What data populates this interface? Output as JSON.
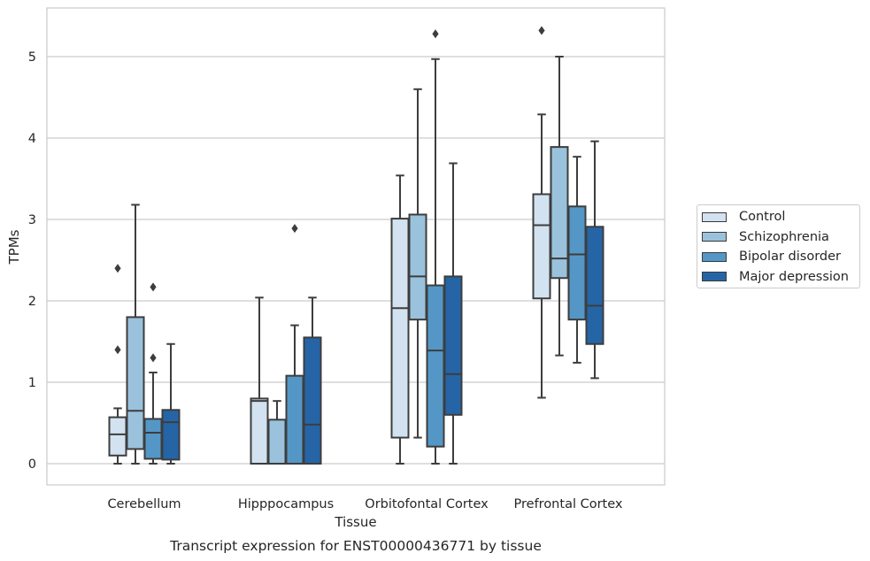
{
  "chart_data": {
    "type": "box",
    "caption": "Transcript expression for ENST00000436771 by tissue",
    "xlabel": "Tissue",
    "ylabel": "TPMs",
    "ylim": [
      -0.25,
      5.6
    ],
    "yticks": [
      0,
      1,
      2,
      3,
      4,
      5
    ],
    "grid": "horizontal",
    "legend_position": "right",
    "categories": [
      "Cerebellum",
      "Hipppocampus",
      "Orbitofontal Cortex",
      "Prefrontal Cortex"
    ],
    "series": [
      {
        "name": "Control",
        "color": "#d2e2f1",
        "boxes": [
          {
            "whisker_low": 0.0,
            "q1": 0.1,
            "median": 0.36,
            "q3": 0.57,
            "whisker_high": 0.68,
            "outliers": [
              1.4,
              2.4
            ]
          },
          {
            "whisker_low": 0.0,
            "q1": 0.0,
            "median": 0.77,
            "q3": 0.8,
            "whisker_high": 2.04,
            "outliers": []
          },
          {
            "whisker_low": 0.0,
            "q1": 0.32,
            "median": 1.91,
            "q3": 3.01,
            "whisker_high": 3.54,
            "outliers": []
          },
          {
            "whisker_low": 0.81,
            "q1": 2.03,
            "median": 2.93,
            "q3": 3.31,
            "whisker_high": 4.29,
            "outliers": [
              5.32
            ]
          }
        ]
      },
      {
        "name": "Schizophrenia",
        "color": "#9ac2dc",
        "boxes": [
          {
            "whisker_low": 0.0,
            "q1": 0.18,
            "median": 0.65,
            "q3": 1.8,
            "whisker_high": 3.18,
            "outliers": []
          },
          {
            "whisker_low": 0.0,
            "q1": 0.0,
            "median": 0.0,
            "q3": 0.54,
            "whisker_high": 0.77,
            "outliers": []
          },
          {
            "whisker_low": 0.32,
            "q1": 1.77,
            "median": 2.3,
            "q3": 3.06,
            "whisker_high": 4.6,
            "outliers": []
          },
          {
            "whisker_low": 1.33,
            "q1": 2.28,
            "median": 2.52,
            "q3": 3.89,
            "whisker_high": 5.0,
            "outliers": []
          }
        ]
      },
      {
        "name": "Bipolar disorder",
        "color": "#5497c7",
        "boxes": [
          {
            "whisker_low": 0.0,
            "q1": 0.06,
            "median": 0.38,
            "q3": 0.55,
            "whisker_high": 1.12,
            "outliers": [
              1.3,
              2.17
            ]
          },
          {
            "whisker_low": 0.0,
            "q1": 0.0,
            "median": 0.0,
            "q3": 1.08,
            "whisker_high": 1.7,
            "outliers": [
              2.89
            ]
          },
          {
            "whisker_low": 0.0,
            "q1": 0.21,
            "median": 1.39,
            "q3": 2.19,
            "whisker_high": 4.97,
            "outliers": [
              5.28
            ]
          },
          {
            "whisker_low": 1.24,
            "q1": 1.77,
            "median": 2.57,
            "q3": 3.16,
            "whisker_high": 3.77,
            "outliers": []
          }
        ]
      },
      {
        "name": "Major depression",
        "color": "#2565a6",
        "boxes": [
          {
            "whisker_low": 0.0,
            "q1": 0.05,
            "median": 0.51,
            "q3": 0.66,
            "whisker_high": 1.47,
            "outliers": []
          },
          {
            "whisker_low": 0.0,
            "q1": 0.0,
            "median": 0.48,
            "q3": 1.55,
            "whisker_high": 2.04,
            "outliers": []
          },
          {
            "whisker_low": 0.0,
            "q1": 0.6,
            "median": 1.1,
            "q3": 2.3,
            "whisker_high": 3.69,
            "outliers": []
          },
          {
            "whisker_low": 1.05,
            "q1": 1.47,
            "median": 1.94,
            "q3": 2.91,
            "whisker_high": 3.96,
            "outliers": []
          }
        ]
      }
    ]
  }
}
